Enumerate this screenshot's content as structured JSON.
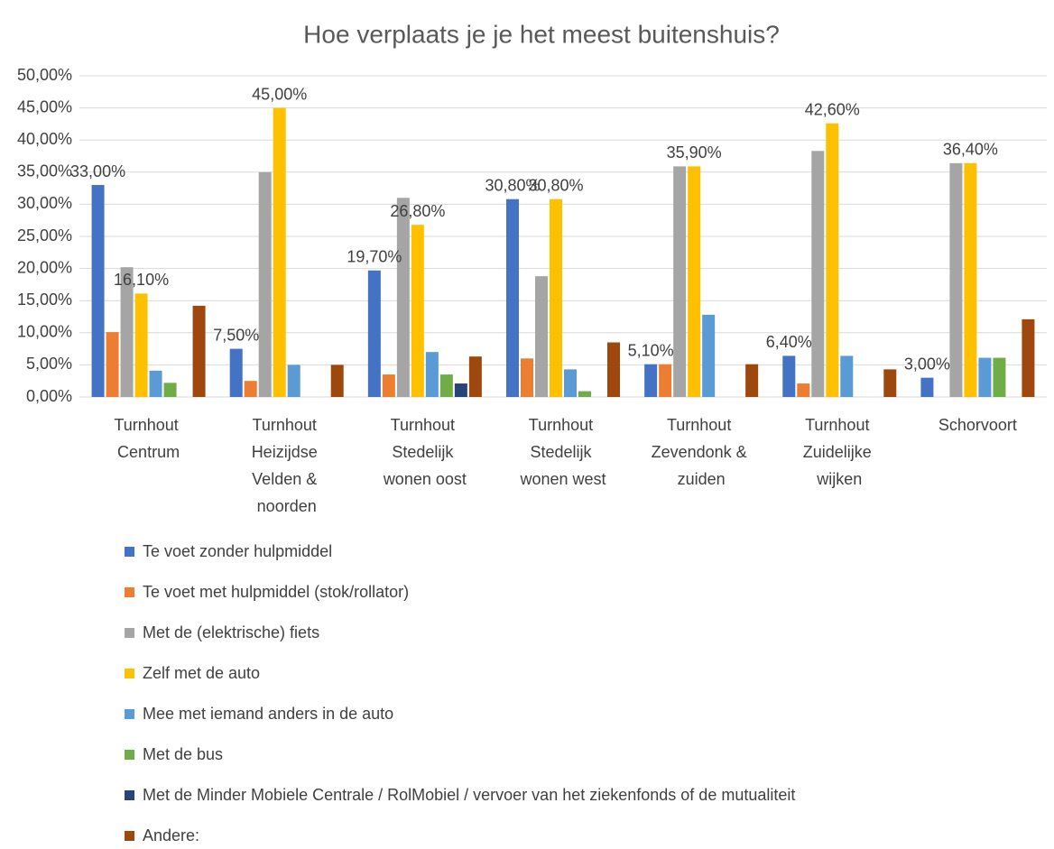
{
  "chart_data": {
    "type": "bar",
    "title": "Hoe verplaats je je het meest buitenshuis?",
    "categories": [
      "Turnhout Centrum",
      "Turnhout Heizijdse Velden & noorden",
      "Turnhout Stedelijk wonen oost",
      "Turnhout Stedelijk wonen west",
      "Turnhout Zevendonk & zuiden",
      "Turnhout Zuidelijke wijken",
      "Schorvoort"
    ],
    "series": [
      {
        "name": "Te voet zonder hulpmiddel",
        "color": "#4472c4",
        "values": [
          33,
          7.5,
          19.7,
          30.8,
          5.1,
          6.4,
          3
        ],
        "value_labels": [
          "33,00%",
          "7,50%",
          "19,70%",
          "30,80%",
          "5,10%",
          "6,40%",
          "3,00%"
        ]
      },
      {
        "name": "Te voet met hulpmiddel (stok/rollator)",
        "color": "#ed7d31",
        "values": [
          10.1,
          2.5,
          3.5,
          6,
          5.1,
          2.1,
          0
        ]
      },
      {
        "name": "Met de (elektrische) fiets",
        "color": "#a5a5a5",
        "values": [
          20.2,
          35,
          31,
          18.8,
          35.9,
          38.3,
          36.4
        ]
      },
      {
        "name": "Zelf met de auto",
        "color": "#ffc000",
        "values": [
          16.1,
          45,
          26.8,
          30.8,
          35.9,
          42.6,
          36.4
        ],
        "value_labels": [
          "16,10%",
          "45,00%",
          "26,80%",
          "30,80%",
          "35,90%",
          "42,60%",
          "36,40%"
        ]
      },
      {
        "name": "Mee met iemand anders in de auto",
        "color": "#5b9bd5",
        "values": [
          4.1,
          5,
          7,
          4.3,
          12.8,
          6.4,
          6.1
        ]
      },
      {
        "name": "Met de bus",
        "color": "#70ad47",
        "values": [
          2.2,
          0,
          3.5,
          0.9,
          0,
          0,
          6.1
        ]
      },
      {
        "name": "Met de Minder Mobiele Centrale / RolMobiel / vervoer van het ziekenfonds of de mutualiteit",
        "color": "#264478",
        "values": [
          0,
          0,
          2.1,
          0,
          0,
          0,
          0
        ]
      },
      {
        "name": "Andere:",
        "color": "#9e480e",
        "values": [
          14.2,
          5,
          6.3,
          8.5,
          5.1,
          4.3,
          12.1
        ]
      }
    ],
    "ylim": [
      0,
      50
    ],
    "yticks": [
      {
        "value": 0,
        "label": "0,00%"
      },
      {
        "value": 5,
        "label": "5,00%"
      },
      {
        "value": 10,
        "label": "10,00%"
      },
      {
        "value": 15,
        "label": "15,00%"
      },
      {
        "value": 20,
        "label": "20,00%"
      },
      {
        "value": 25,
        "label": "25,00%"
      },
      {
        "value": 30,
        "label": "30,00%"
      },
      {
        "value": 35,
        "label": "35,00%"
      },
      {
        "value": 40,
        "label": "40,00%"
      },
      {
        "value": 45,
        "label": "45,00%"
      },
      {
        "value": 50,
        "label": "50,00%"
      }
    ],
    "grid": true,
    "legend": "bottom"
  }
}
